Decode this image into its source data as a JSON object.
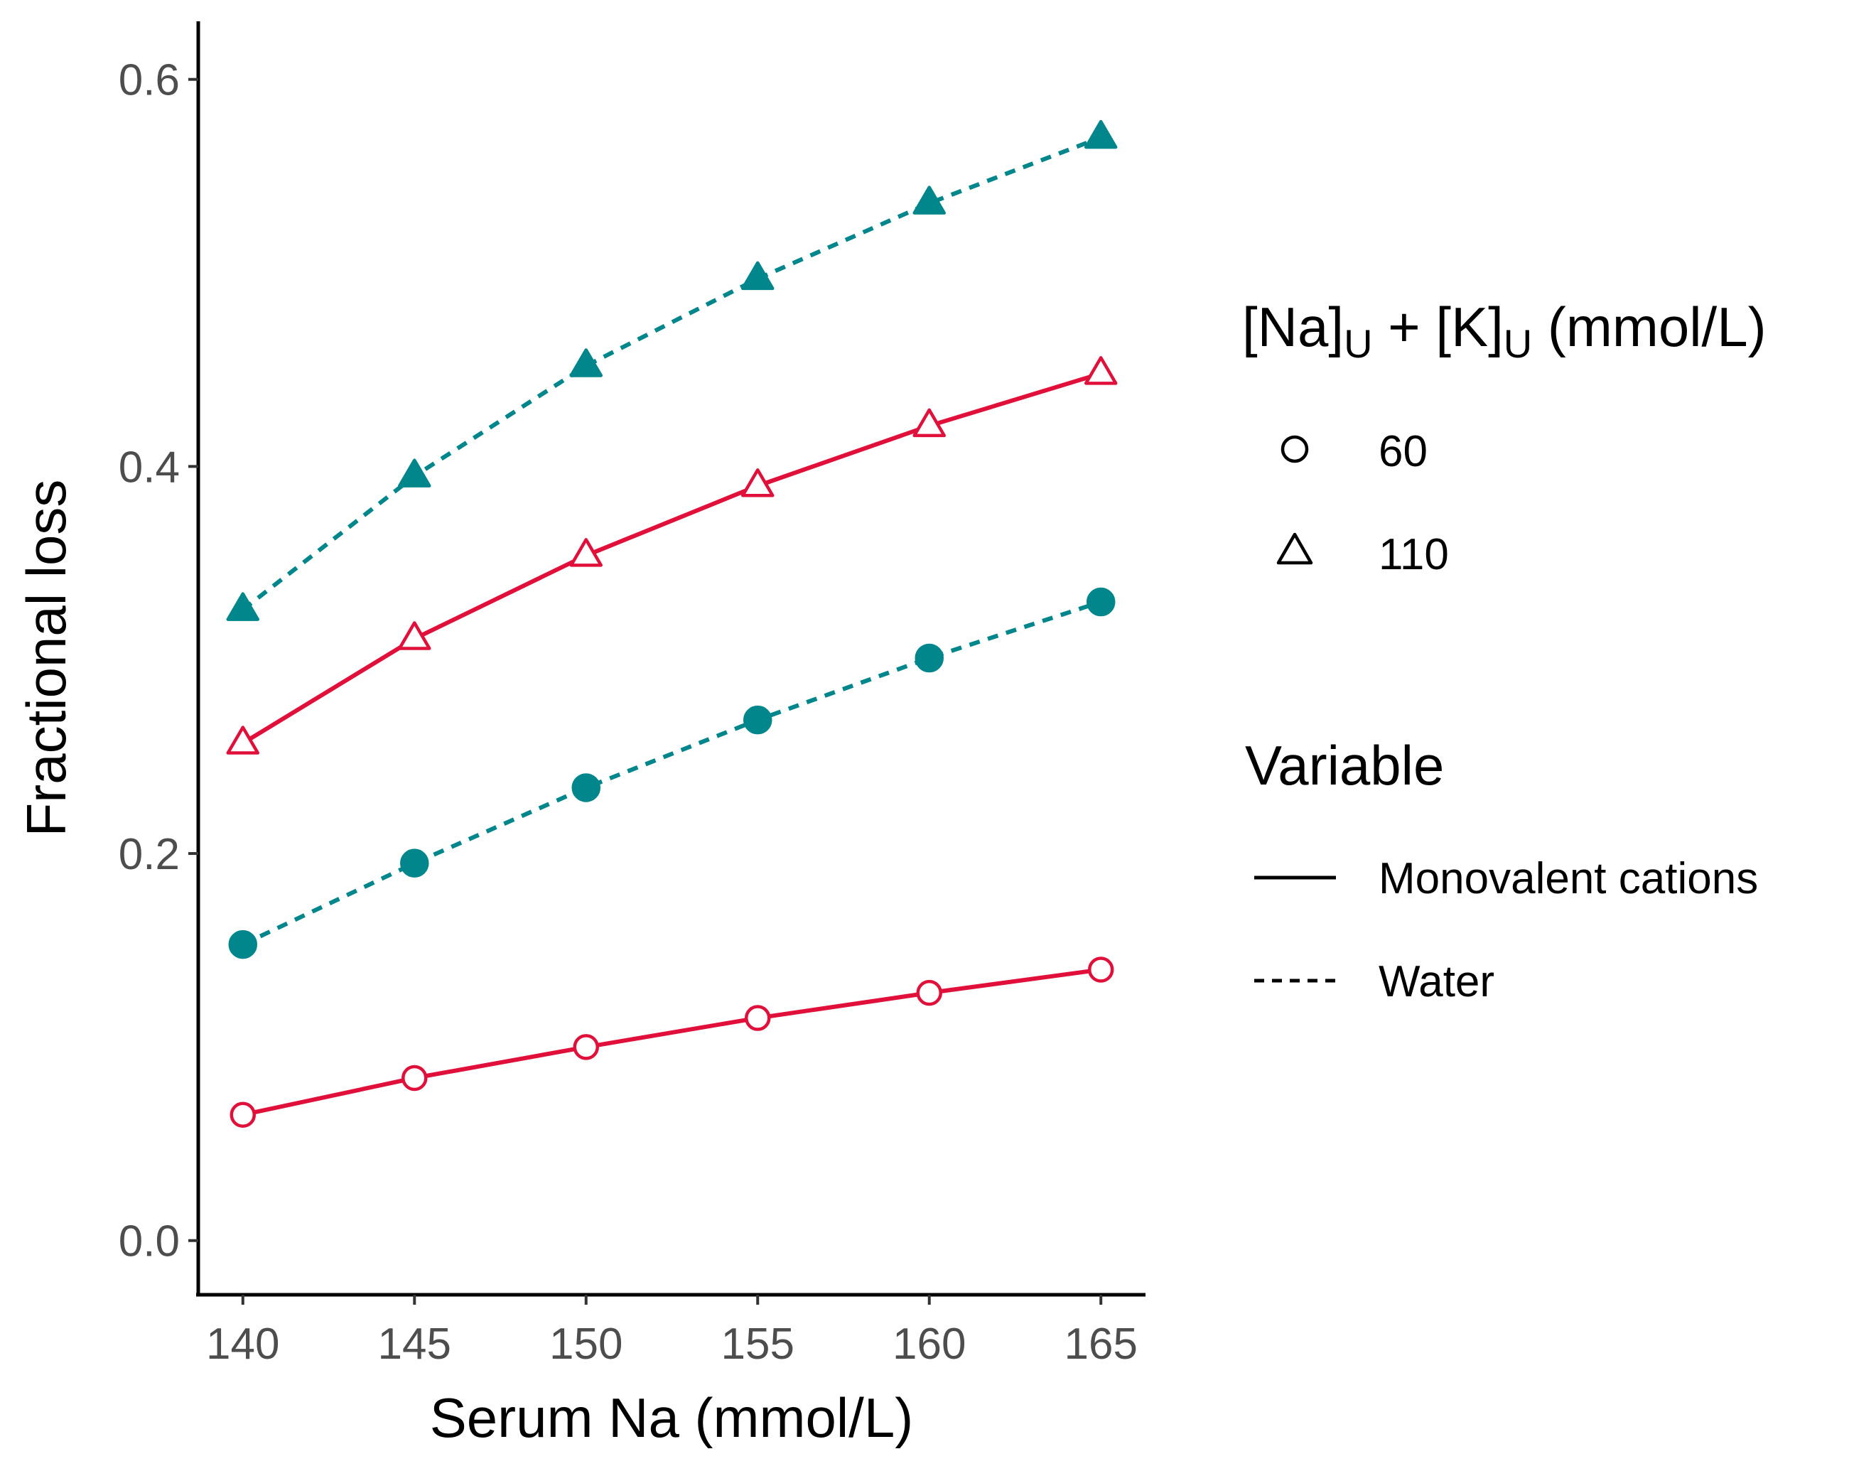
{
  "chart_data": {
    "type": "line",
    "xlabel": "Serum Na (mmol/L)",
    "ylabel": "Fractional loss",
    "x": [
      140,
      145,
      150,
      155,
      160,
      165
    ],
    "xlim": [
      138.7,
      166.3
    ],
    "ylim": [
      -0.028,
      0.63
    ],
    "xticks": [
      "140",
      "145",
      "150",
      "155",
      "160",
      "165"
    ],
    "yticks": [
      "0.0",
      "0.2",
      "0.4",
      "0.6"
    ],
    "grid": false,
    "legend_placement": "right",
    "colors": {
      "Monovalent cations": "#E0103A",
      "Water": "#00868B"
    },
    "series": [
      {
        "variable": "Water",
        "urine": "110",
        "values": [
          0.326,
          0.395,
          0.452,
          0.497,
          0.536,
          0.57
        ]
      },
      {
        "variable": "Monovalent cations",
        "urine": "110",
        "values": [
          0.257,
          0.311,
          0.354,
          0.39,
          0.421,
          0.448
        ]
      },
      {
        "variable": "Water",
        "urine": "60",
        "values": [
          0.153,
          0.195,
          0.234,
          0.269,
          0.301,
          0.33
        ]
      },
      {
        "variable": "Monovalent cations",
        "urine": "60",
        "values": [
          0.065,
          0.084,
          0.1,
          0.115,
          0.128,
          0.14
        ]
      }
    ],
    "legend": {
      "shape": {
        "title_parts": [
          "[Na]",
          "U",
          " + [K]",
          "U",
          " (mmol/L)"
        ],
        "entries": [
          {
            "label": "60",
            "marker": "circle-open"
          },
          {
            "label": "110",
            "marker": "triangle-open"
          }
        ]
      },
      "linetype": {
        "title": "Variable",
        "entries": [
          {
            "label": "Monovalent cations",
            "linetype": "solid"
          },
          {
            "label": "Water",
            "linetype": "dashed"
          }
        ]
      }
    }
  }
}
